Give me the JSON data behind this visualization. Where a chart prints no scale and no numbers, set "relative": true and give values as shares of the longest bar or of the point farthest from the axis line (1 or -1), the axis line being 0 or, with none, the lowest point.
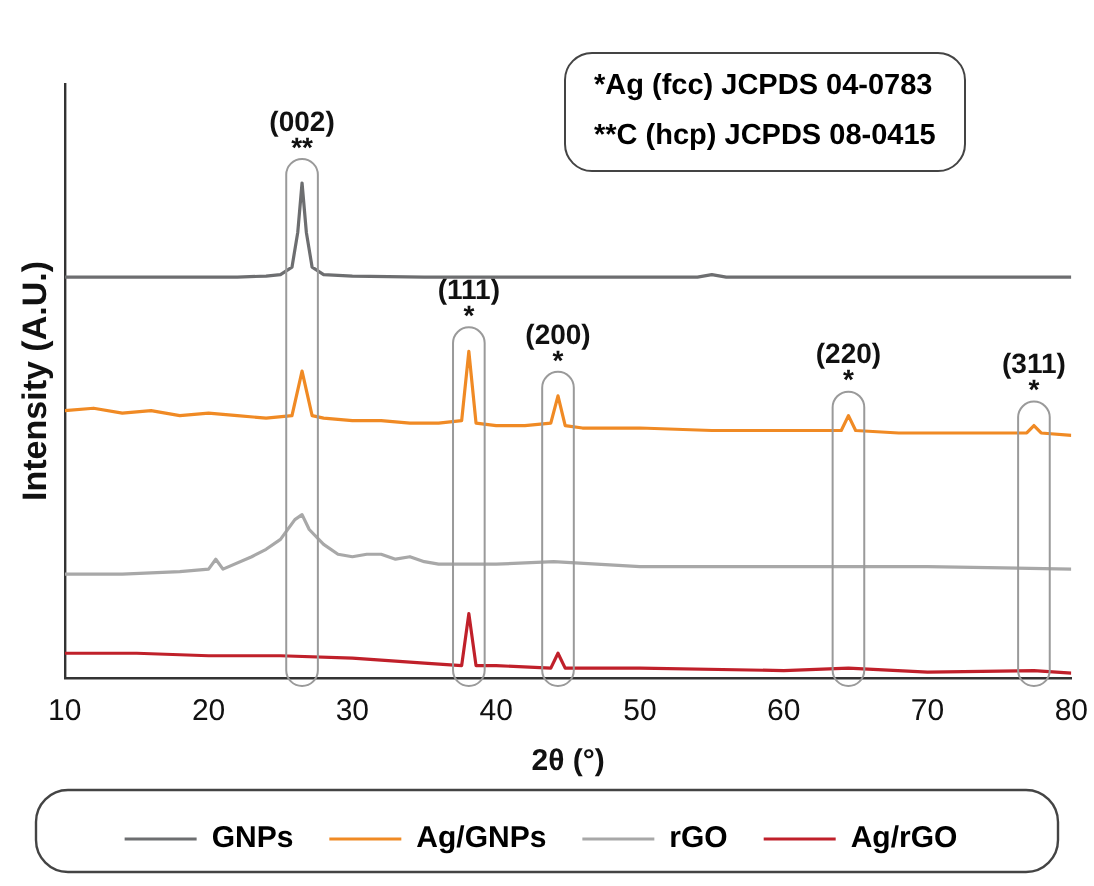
{
  "chart_data": {
    "type": "line",
    "relative": true,
    "xlabel": "2θ (°)",
    "ylabel": "Intensity (A.U.)",
    "xlim": [
      10,
      80
    ],
    "xticks": [
      10,
      20,
      30,
      40,
      50,
      60,
      70,
      80
    ],
    "legend": "bottom",
    "grid": false,
    "marker": "none",
    "line_style": "solid",
    "tick_labels": "x",
    "annotations": [
      "*Ag (fcc) JCPDS 04-0783",
      "**C (hcp) JCPDS 08-0415",
      {
        "text": "(002)",
        "x": 26.5,
        "y": 1.0
      },
      {
        "text": "**",
        "x": 26.5,
        "y": 1.0
      },
      {
        "text": "(111)",
        "x": 38.1,
        "y": 0.66
      },
      {
        "text": "*",
        "x": 38.1,
        "y": 0.66
      },
      {
        "text": "(200)",
        "x": 44.3,
        "y": 0.57
      },
      {
        "text": "*",
        "x": 44.3,
        "y": 0.57
      },
      {
        "text": "(220)",
        "x": 64.5,
        "y": 0.53
      },
      {
        "text": "*",
        "x": 64.5,
        "y": 0.53
      },
      {
        "text": "(311)",
        "x": 77.4,
        "y": 0.51
      },
      {
        "text": "*",
        "x": 77.4,
        "y": 0.51
      }
    ],
    "series": [
      {
        "name": "GNPs",
        "color": "#6d6e70",
        "x": [
          10,
          12,
          15,
          18,
          20,
          22,
          24,
          25,
          25.8,
          26.2,
          26.5,
          26.8,
          27.2,
          28,
          30,
          35,
          40,
          45,
          50,
          54,
          55,
          56,
          60,
          65,
          70,
          75,
          80
        ],
        "values": [
          0.81,
          0.81,
          0.81,
          0.81,
          0.81,
          0.81,
          0.812,
          0.815,
          0.83,
          0.9,
          1.0,
          0.9,
          0.83,
          0.815,
          0.812,
          0.81,
          0.81,
          0.81,
          0.81,
          0.81,
          0.815,
          0.81,
          0.81,
          0.81,
          0.81,
          0.81,
          0.81
        ]
      },
      {
        "name": "Ag/GNPs",
        "color": "#f08a24",
        "x": [
          10,
          12,
          14,
          16,
          18,
          20,
          22,
          24,
          25.8,
          26.5,
          27.2,
          28,
          30,
          32,
          34,
          36,
          37.6,
          38.1,
          38.6,
          40,
          42,
          43.8,
          44.3,
          44.8,
          46,
          50,
          55,
          60,
          64,
          64.5,
          65,
          68,
          72,
          76.9,
          77.4,
          77.9,
          80
        ],
        "values": [
          0.54,
          0.545,
          0.535,
          0.54,
          0.53,
          0.535,
          0.53,
          0.525,
          0.53,
          0.62,
          0.53,
          0.525,
          0.52,
          0.52,
          0.515,
          0.515,
          0.52,
          0.66,
          0.515,
          0.51,
          0.51,
          0.515,
          0.57,
          0.51,
          0.505,
          0.505,
          0.5,
          0.5,
          0.5,
          0.53,
          0.5,
          0.495,
          0.495,
          0.495,
          0.51,
          0.495,
          0.49
        ]
      },
      {
        "name": "rGO",
        "color": "#a8a8a8",
        "x": [
          10,
          14,
          18,
          20,
          20.5,
          21,
          23,
          24,
          25,
          26,
          26.5,
          27,
          28,
          29,
          30,
          31,
          32,
          33,
          34,
          35,
          36,
          40,
          44,
          50,
          60,
          70,
          80
        ],
        "values": [
          0.21,
          0.21,
          0.215,
          0.22,
          0.24,
          0.22,
          0.245,
          0.26,
          0.28,
          0.32,
          0.33,
          0.3,
          0.27,
          0.25,
          0.245,
          0.25,
          0.25,
          0.24,
          0.245,
          0.235,
          0.23,
          0.23,
          0.235,
          0.225,
          0.225,
          0.225,
          0.22
        ]
      },
      {
        "name": "Ag/rGO",
        "color": "#c0202a",
        "x": [
          10,
          15,
          20,
          25,
          30,
          35,
          37.6,
          38.1,
          38.6,
          40,
          43.8,
          44.3,
          44.8,
          50,
          60,
          64.5,
          70,
          77.4,
          80
        ],
        "values": [
          0.05,
          0.05,
          0.045,
          0.045,
          0.04,
          0.03,
          0.025,
          0.13,
          0.025,
          0.025,
          0.02,
          0.05,
          0.02,
          0.02,
          0.015,
          0.02,
          0.012,
          0.015,
          0.01
        ]
      }
    ]
  }
}
